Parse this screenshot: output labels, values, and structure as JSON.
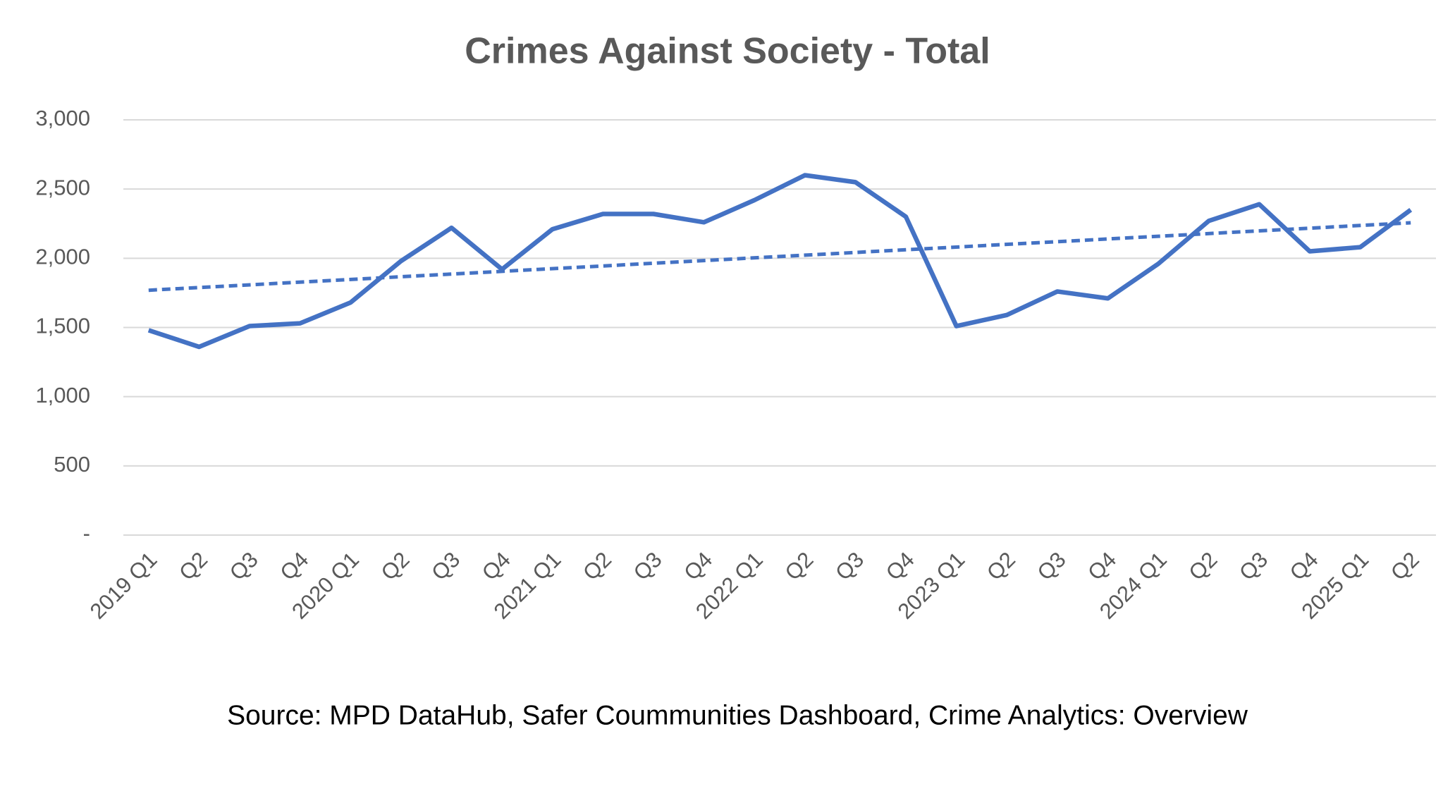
{
  "chart_data": {
    "type": "line",
    "title": "Crimes Against Society - Total",
    "categories": [
      "2019 Q1",
      "Q2",
      "Q3",
      "Q4",
      "2020 Q1",
      "Q2",
      "Q3",
      "Q4",
      "2021 Q1",
      "Q2",
      "Q3",
      "Q4",
      "2022 Q1",
      "Q2",
      "Q3",
      "Q4",
      "2023 Q1",
      "Q2",
      "Q3",
      "Q4",
      "2024 Q1",
      "Q2",
      "Q3",
      "Q4",
      "2025 Q1",
      "Q2"
    ],
    "values": [
      1480,
      1360,
      1510,
      1530,
      1680,
      1980,
      2220,
      1920,
      2210,
      2320,
      2320,
      2260,
      2420,
      2600,
      2550,
      2300,
      1510,
      1590,
      1760,
      1710,
      1960,
      2270,
      2390,
      2050,
      2080,
      2350
    ],
    "color": "#4472c4",
    "trendline": true,
    "ylim": [
      0,
      3000
    ],
    "yticks": [
      {
        "value": 0,
        "label": "-"
      },
      500,
      {
        "value": 1000,
        "label": "1,000"
      },
      {
        "value": 1500,
        "label": "1,500"
      },
      {
        "value": 2000,
        "label": "2,000"
      },
      {
        "value": 2500,
        "label": "2,500"
      },
      {
        "value": 3000,
        "label": "3,000"
      }
    ],
    "grid": true,
    "source": "Source: MPD DataHub, Safer Coummunities Dashboard,  Crime Analytics: Overview"
  }
}
